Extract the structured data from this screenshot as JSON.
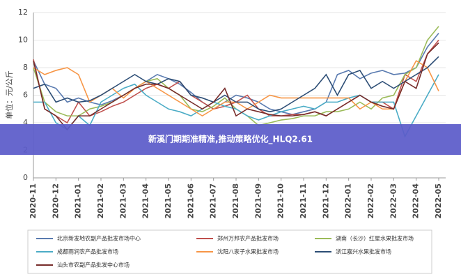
{
  "chart_data": {
    "type": "line",
    "y_label": "单位：元/公斤",
    "banner": "新溪门期期准精准,推动策略优化_HLQ2.61",
    "categories": [
      "2020-11",
      null,
      "2020-12",
      null,
      "2021-01",
      null,
      "2021-02",
      null,
      "2021-03",
      null,
      "2021-04",
      null,
      "2021-05",
      null,
      "2021-06",
      null,
      "2021-07",
      null,
      "2021-08",
      null,
      "2021-09",
      null,
      "2021-10",
      null,
      "2021-11",
      null,
      "2021-12",
      null,
      "2022-01",
      null,
      "2022-02",
      null,
      "2022-03",
      null,
      "2022-04",
      null,
      "2022-05"
    ],
    "ylim": [
      0,
      12
    ],
    "yticks": [
      0,
      2,
      4,
      6,
      8,
      10,
      12
    ],
    "grid": true,
    "series": [
      {
        "name": "北京新发地农副产品批发市场中心",
        "color": "#5a7bb0",
        "values": [
          8.5,
          6.8,
          6.5,
          5.5,
          5.8,
          5.5,
          5.3,
          5.6,
          6.0,
          6.5,
          7.0,
          7.5,
          7.2,
          6.8,
          6.2,
          5.5,
          5.0,
          5.5,
          6.0,
          5.8,
          5.5,
          5.0,
          4.8,
          4.6,
          4.8,
          5.0,
          5.5,
          7.5,
          7.8,
          7.2,
          7.6,
          7.8,
          7.5,
          7.6,
          8.0,
          9.5,
          10.5
        ]
      },
      {
        "name": "郑州万邦农产品批发市场",
        "color": "#c0504d",
        "values": [
          8.6,
          5.0,
          4.5,
          4.0,
          5.5,
          4.5,
          4.8,
          5.2,
          5.5,
          6.0,
          6.5,
          6.8,
          6.5,
          7.0,
          6.0,
          5.5,
          5.0,
          5.2,
          5.5,
          6.0,
          5.0,
          4.5,
          4.5,
          4.6,
          4.6,
          4.8,
          4.5,
          5.0,
          5.5,
          6.0,
          5.5,
          5.5,
          5.0,
          7.5,
          7.0,
          9.0,
          10.0
        ]
      },
      {
        "name": "湖南（长沙）红星水果批发市场",
        "color": "#9bbb59",
        "values": [
          8.0,
          5.5,
          4.8,
          4.5,
          4.5,
          5.0,
          5.2,
          5.5,
          6.0,
          6.5,
          7.0,
          7.2,
          6.5,
          6.0,
          5.0,
          4.8,
          5.2,
          5.8,
          5.0,
          4.5,
          3.8,
          4.0,
          4.2,
          4.3,
          4.5,
          4.5,
          4.8,
          4.8,
          5.0,
          5.5,
          5.0,
          5.8,
          6.0,
          7.5,
          8.0,
          10.0,
          11.0
        ]
      },
      {
        "name": "成都雨润农产品批发市场",
        "color": "#4bacc6",
        "values": [
          5.5,
          5.5,
          4.0,
          3.5,
          4.5,
          3.8,
          5.5,
          6.0,
          6.5,
          6.8,
          6.0,
          5.5,
          5.0,
          4.8,
          4.5,
          5.0,
          5.5,
          5.2,
          5.0,
          4.5,
          4.2,
          4.5,
          4.8,
          5.0,
          5.2,
          5.0,
          5.5,
          5.5,
          5.8,
          6.0,
          5.5,
          5.5,
          5.5,
          3.0,
          4.5,
          6.0,
          7.5
        ]
      },
      {
        "name": "沈阳八家子水果批发市场",
        "color": "#f79646",
        "values": [
          8.0,
          7.5,
          7.8,
          8.0,
          7.5,
          5.5,
          6.0,
          6.5,
          5.8,
          6.5,
          7.0,
          6.5,
          6.0,
          5.5,
          5.0,
          4.5,
          5.0,
          5.5,
          5.5,
          5.0,
          5.5,
          6.0,
          5.8,
          5.8,
          5.8,
          5.8,
          5.8,
          5.8,
          5.8,
          5.0,
          5.5,
          5.0,
          5.0,
          7.0,
          8.5,
          8.0,
          6.3
        ]
      },
      {
        "name": "浙江嘉兴水果批发市场",
        "color": "#2c4d75",
        "values": [
          6.5,
          6.8,
          5.5,
          5.8,
          5.5,
          5.6,
          6.0,
          6.5,
          7.0,
          7.5,
          7.0,
          6.8,
          7.2,
          7.0,
          6.0,
          5.8,
          5.5,
          6.0,
          5.5,
          5.5,
          5.0,
          4.8,
          5.0,
          5.5,
          6.0,
          6.5,
          7.5,
          6.0,
          7.5,
          7.8,
          6.5,
          7.0,
          6.5,
          7.0,
          7.5,
          8.0,
          8.8
        ]
      },
      {
        "name": "汕头市农副产品批发中心市场",
        "color": "#772c2a",
        "values": [
          8.5,
          5.0,
          4.5,
          3.5,
          4.5,
          4.5,
          5.0,
          5.5,
          6.0,
          6.5,
          6.8,
          6.8,
          6.5,
          6.0,
          5.5,
          5.0,
          5.5,
          6.5,
          4.5,
          5.0,
          4.8,
          4.6,
          4.5,
          4.5,
          4.6,
          4.8,
          4.5,
          5.0,
          5.5,
          6.0,
          5.5,
          5.2,
          5.0,
          7.0,
          6.5,
          9.0,
          9.8
        ]
      }
    ]
  }
}
